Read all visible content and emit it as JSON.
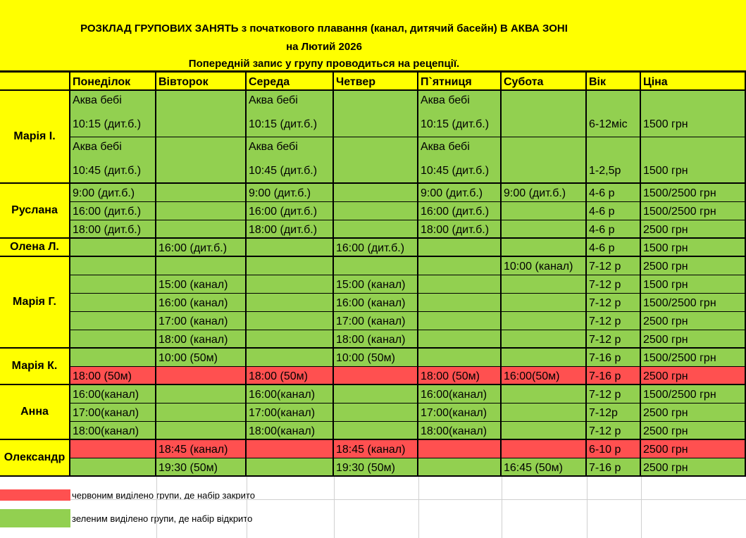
{
  "header": {
    "line1": "РОЗКЛАД ГРУПОВИХ ЗАНЯТЬ з початкового плавання (канал, дитячий басейн) В АКВА ЗОНІ",
    "line2": "на Лютий 2026",
    "line3": "Попередній запис у групу проводиться на рецепції."
  },
  "columns": [
    "Понеділок",
    "Вівторок",
    "Середа",
    "Четвер",
    "П`ятниця",
    "Субота",
    "Вік",
    "Ціна"
  ],
  "coaches": [
    {
      "name": "Марія І.",
      "rows": [
        {
          "cells": [
            "Аква бебі|10:15 (дит.б.)",
            "",
            "Аква бебі|10:15 (дит.б.)",
            "",
            "Аква бебі|10:15 (дит.б.)",
            "",
            "6-12міс",
            "1500 грн"
          ],
          "color": "green"
        },
        {
          "cells": [
            "Аква бебі|10:45 (дит.б.)",
            "",
            "Аква бебі|10:45 (дит.б.)",
            "",
            "Аква бебі|10:45 (дит.б.)",
            "",
            "1-2,5р",
            "1500 грн"
          ],
          "color": "green"
        }
      ]
    },
    {
      "name": "Руслана",
      "rows": [
        {
          "cells": [
            "9:00 (дит.б.)",
            "",
            "9:00 (дит.б.)",
            "",
            "9:00 (дит.б.)",
            "9:00 (дит.б.)",
            "4-6 р",
            "1500/2500 грн"
          ],
          "color": "green"
        },
        {
          "cells": [
            "16:00 (дит.б.)",
            "",
            "16:00 (дит.б.)",
            "",
            "16:00 (дит.б.)",
            "",
            "4-6 р",
            "1500/2500 грн"
          ],
          "color": "green"
        },
        {
          "cells": [
            "18:00 (дит.б.)",
            "",
            "18:00 (дит.б.)",
            "",
            "18:00 (дит.б.)",
            "",
            "4-6 р",
            "2500 грн"
          ],
          "color": "green"
        }
      ]
    },
    {
      "name": "Олена Л.",
      "rows": [
        {
          "cells": [
            "",
            "16:00 (дит.б.)",
            "",
            "16:00 (дит.б.)",
            "",
            "",
            "4-6 р",
            "1500 грн"
          ],
          "color": "green"
        }
      ]
    },
    {
      "name": "Марія Г.",
      "rows": [
        {
          "cells": [
            "",
            "",
            "",
            "",
            "",
            "10:00 (канал)",
            "7-12 р",
            "2500 грн"
          ],
          "color": "green"
        },
        {
          "cells": [
            "",
            "15:00 (канал)",
            "",
            "15:00 (канал)",
            "",
            "",
            "7-12 р",
            "1500 грн"
          ],
          "color": "green"
        },
        {
          "cells": [
            "",
            "16:00 (канал)",
            "",
            "16:00 (канал)",
            "",
            "",
            "7-12 р",
            "1500/2500 грн"
          ],
          "color": "green"
        },
        {
          "cells": [
            "",
            "17:00 (канал)",
            "",
            "17:00 (канал)",
            "",
            "",
            "7-12 р",
            "2500 грн"
          ],
          "color": "green"
        },
        {
          "cells": [
            "",
            "18:00 (канал)",
            "",
            "18:00 (канал)",
            "",
            "",
            "7-12 р",
            "2500 грн"
          ],
          "color": "green"
        }
      ]
    },
    {
      "name": "Марія К.",
      "rows": [
        {
          "cells": [
            "",
            "10:00 (50м)",
            "",
            "10:00 (50м)",
            "",
            "",
            "7-16 р",
            "1500/2500 грн"
          ],
          "color": "green"
        },
        {
          "cells": [
            "18:00 (50м)",
            "",
            "18:00 (50м)",
            "",
            "18:00 (50м)",
            "16:00(50м)",
            "7-16 р",
            "2500 грн"
          ],
          "color": "red"
        }
      ]
    },
    {
      "name": "Анна",
      "rows": [
        {
          "cells": [
            "16:00(канал)",
            "",
            "16:00(канал)",
            "",
            "16:00(канал)",
            "",
            "7-12 р",
            "1500/2500 грн"
          ],
          "color": "green"
        },
        {
          "cells": [
            "17:00(канал)",
            "",
            "17:00(канал)",
            "",
            "17:00(канал)",
            "",
            "7-12р",
            "2500 грн"
          ],
          "color": "green"
        },
        {
          "cells": [
            "18:00(канал)",
            "",
            "18:00(канал)",
            "",
            "18:00(канал)",
            "",
            "7-12 р",
            "2500 грн"
          ],
          "color": "green"
        }
      ]
    },
    {
      "name": "Олександр",
      "rows": [
        {
          "cells": [
            "",
            "18:45 (канал)",
            "",
            "18:45 (канал)",
            "",
            "",
            "6-10 р",
            "2500 грн"
          ],
          "color": "red"
        },
        {
          "cells": [
            "",
            "19:30 (50м)",
            "",
            "19:30 (50м)",
            "",
            "16:45 (50м)",
            "7-16 р",
            "2500 грн"
          ],
          "color": "green"
        }
      ]
    }
  ],
  "legend": {
    "red": "червоним виділено групи, де набір закрито",
    "green": "зеленим виділено групи, де набір відкрито"
  },
  "colors": {
    "green": "#92d050",
    "red": "#ff5050",
    "yellow": "#ffff00"
  }
}
